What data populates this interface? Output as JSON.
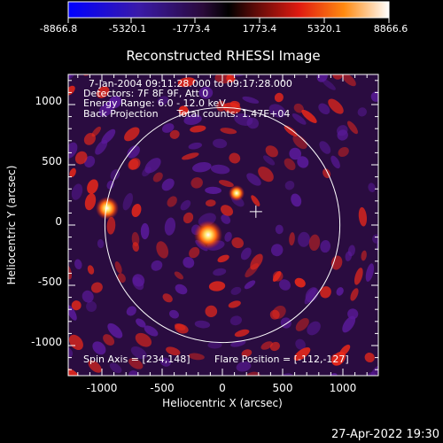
{
  "colorbar": {
    "tick_labels": [
      "-8866.8",
      "-5320.1",
      "-1773.4",
      "1773.4",
      "5320.1",
      "8866.6"
    ],
    "range": [
      -8866.8,
      8866.6
    ]
  },
  "plot": {
    "title": "Reconstructed RHESSI Image",
    "info_lines": [
      "7-Jan-2004 09:11:28.000 to 09:17:28.000",
      "Detectors: 7F 8F 9F, Att 0",
      "Energy Range: 6.0 - 12.0 keV",
      "Back Projection      Total counts: 1.47E+04"
    ],
    "spin_axis_text": "Spin Axis = [234,148]",
    "flare_position_text": "Flare Position = [-112,-127]",
    "xlabel": "Heliocentric X (arcsec)",
    "ylabel": "Heliocentric Y (arcsec)",
    "xticks": [
      "-1000",
      "-500",
      "0",
      "500",
      "1000"
    ],
    "yticks": [
      "1000",
      "500",
      "0",
      "-500",
      "-1000"
    ],
    "x_range": [
      -1300,
      1300
    ],
    "y_range": [
      -1300,
      1300
    ],
    "limb_radius_arcsec": 975,
    "spin_axis": [
      234,
      148
    ],
    "flare_position": [
      -112,
      -127
    ],
    "colors": {
      "frame": "#ffffff",
      "positive": "#e8281a",
      "negative": "#5a1a9a",
      "background": "#000000"
    }
  },
  "footer": {
    "timestamp": "27-Apr-2022 19:30"
  }
}
